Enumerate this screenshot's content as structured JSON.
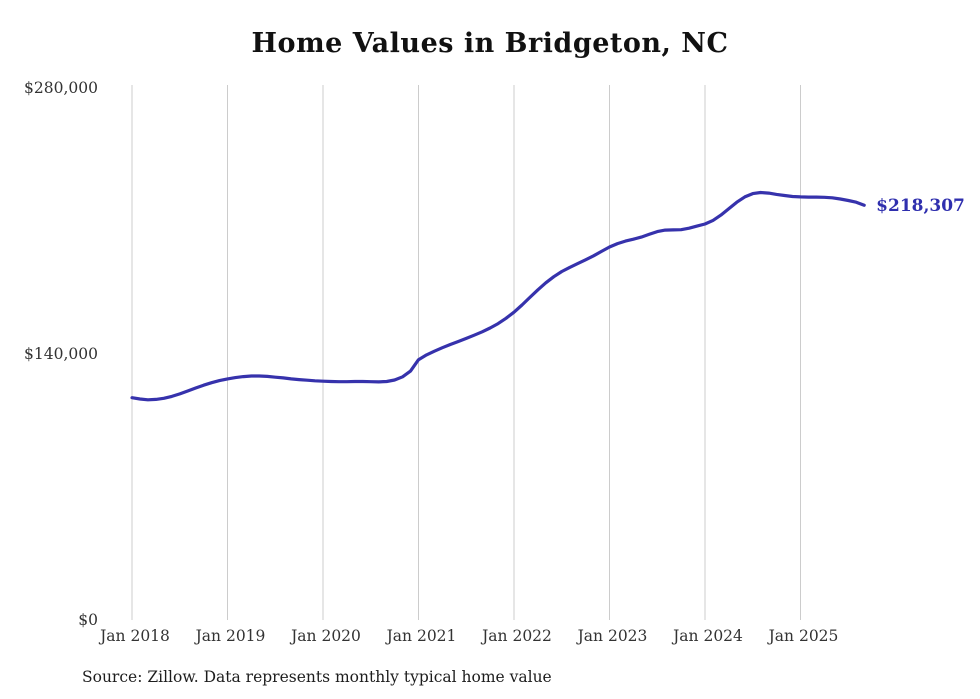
{
  "title": "Home Values in Bridgeton, NC",
  "source_note": "Source: Zillow. Data represents monthly typical home value",
  "end_label": "$218,307",
  "colors": {
    "line": "#3632ac",
    "end_label": "#2f2fae",
    "grid": "#cccccc",
    "tick_text": "#333333",
    "title_text": "#111111"
  },
  "chart_data": {
    "type": "line",
    "title": "Home Values in Bridgeton, NC",
    "xlabel": "",
    "ylabel": "",
    "ylim": [
      0,
      280000
    ],
    "grid": "vertical-only",
    "legend": "none",
    "yticks": [
      {
        "value": 0,
        "label": "$0"
      },
      {
        "value": 140000,
        "label": "$140,000"
      },
      {
        "value": 280000,
        "label": "$280,000"
      }
    ],
    "xticks": [
      "Jan 2018",
      "Jan 2019",
      "Jan 2020",
      "Jan 2021",
      "Jan 2022",
      "Jan 2023",
      "Jan 2024",
      "Jan 2025"
    ],
    "series": [
      {
        "name": "Monthly typical home value",
        "start": "2018-01",
        "frequency": "monthly",
        "values": [
          117000,
          116300,
          115900,
          116100,
          116700,
          117700,
          119000,
          120500,
          122100,
          123600,
          124900,
          126000,
          126900,
          127600,
          128100,
          128400,
          128400,
          128200,
          127800,
          127400,
          126900,
          126500,
          126200,
          125900,
          125700,
          125500,
          125400,
          125400,
          125500,
          125500,
          125400,
          125300,
          125500,
          126300,
          128000,
          131000,
          137000,
          139500,
          141500,
          143300,
          145000,
          146600,
          148200,
          149900,
          151700,
          153700,
          156000,
          158800,
          162000,
          165800,
          169800,
          173800,
          177500,
          180700,
          183400,
          185600,
          187600,
          189600,
          191700,
          194000,
          196300,
          198100,
          199400,
          200400,
          201500,
          203000,
          204400,
          205200,
          205300,
          205400,
          206200,
          207300,
          208400,
          210300,
          213100,
          216500,
          219900,
          222700,
          224400,
          225000,
          224700,
          224000,
          223400,
          222900,
          222700,
          222600,
          222600,
          222500,
          222200,
          221600,
          220800,
          219900,
          218307
        ]
      }
    ],
    "last_value": 218307,
    "last_value_label": "$218,307"
  }
}
